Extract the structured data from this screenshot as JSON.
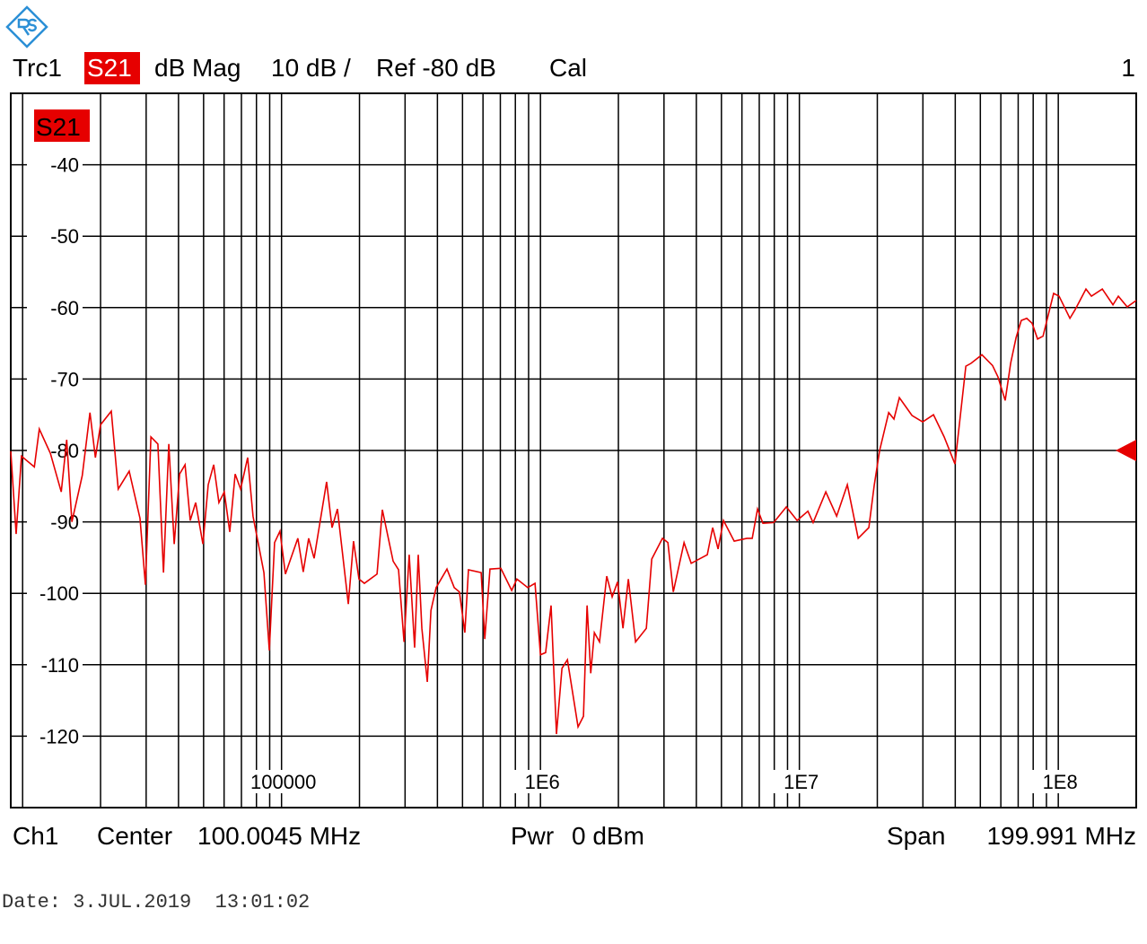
{
  "header": {
    "trace": "Trc1",
    "parameter": "S21",
    "format": "dB Mag",
    "scale": "10 dB /",
    "reference": "Ref -80 dB",
    "calibration": "Cal",
    "window": "1"
  },
  "footer": {
    "channel": "Ch1",
    "center_label": "Center",
    "center": "100.0045 MHz",
    "power_label": "Pwr",
    "power": "0 dBm",
    "span_label": "Span",
    "span": "199.991 MHz",
    "date": "Date: 3.JUL.2019  13:01:02"
  },
  "chart_data": {
    "type": "line",
    "xscale": "log",
    "grid": true,
    "xlim": [
      9000,
      200000000
    ],
    "ylim": [
      -130,
      -30
    ],
    "xticks": [
      {
        "value": 100000,
        "label": "100000"
      },
      {
        "value": 1000000,
        "label": "1E6"
      },
      {
        "value": 10000000,
        "label": "1E7"
      },
      {
        "value": 100000000,
        "label": "1E8"
      }
    ],
    "xgrid": [
      10000,
      20000,
      30000,
      40000,
      50000,
      60000,
      70000,
      80000,
      90000,
      100000,
      200000,
      300000,
      400000,
      500000,
      600000,
      700000,
      800000,
      900000,
      1000000,
      2000000,
      3000000,
      4000000,
      5000000,
      6000000,
      7000000,
      8000000,
      9000000,
      10000000,
      20000000,
      30000000,
      40000000,
      50000000,
      60000000,
      70000000,
      80000000,
      90000000,
      100000000
    ],
    "yticks": [
      -40,
      -50,
      -60,
      -70,
      -80,
      -90,
      -100,
      -110,
      -120
    ],
    "reference_level": -80,
    "x": [
      9000,
      9440,
      9900,
      11100,
      11600,
      12800,
      14100,
      14800,
      15500,
      17000,
      18200,
      19100,
      20000,
      22000,
      23400,
      25800,
      28400,
      29800,
      31300,
      33300,
      35000,
      36700,
      38500,
      40400,
      42400,
      44400,
      46600,
      49700,
      52100,
      54700,
      57300,
      60100,
      63100,
      66200,
      69500,
      74000,
      77600,
      85500,
      89700,
      94000,
      98600,
      103500,
      115600,
      121300,
      127300,
      133600,
      149300,
      156700,
      164400,
      181100,
      189700,
      199100,
      208900,
      233800,
      245100,
      269800,
      283100,
      297200,
      311200,
      326600,
      337300,
      348300,
      365600,
      377600,
      395400,
      435500,
      464500,
      486400,
      510500,
      527200,
      590200,
      609500,
      638300,
      703100,
      774400,
      810900,
      893300,
      952800,
      1000000,
      1047000,
      1099000,
      1153000,
      1211000,
      1271000,
      1397000,
      1466000,
      1514000,
      1564000,
      1615000,
      1691000,
      1803000,
      1892000,
      1986000,
      2083000,
      2185000,
      2330000,
      2564000,
      2691000,
      2960000,
      3106000,
      3259000,
      3586000,
      3821000,
      4409000,
      4626000,
      4853000,
      5092000,
      5602000,
      6267000,
      6576000,
      6892000,
      7230000,
      7954000,
      8906000,
      9800000,
      10790000,
      11300000,
      12650000,
      13930000,
      15320000,
      16070000,
      16870000,
      18550000,
      19470000,
      20420000,
      22130000,
      23190000,
      24330000,
      27230000,
      29940000,
      32960000,
      36240000,
      39900000,
      43950000,
      46030000,
      50700000,
      55720000,
      58480000,
      62370000,
      65460000,
      68710000,
      71950000,
      75510000,
      79250000,
      83180000,
      87300000,
      95940000,
      100700000,
      110900000,
      116100000,
      127900000,
      134300000,
      147900000,
      162600000,
      170600000,
      184600000,
      200000000
    ],
    "series": [
      {
        "name": "S21",
        "color": "#e60000",
        "values": [
          -80.1,
          -91.7,
          -80.8,
          -82.3,
          -77,
          -80.4,
          -85.8,
          -78.5,
          -90,
          -83.5,
          -74.7,
          -81,
          -76.4,
          -74.5,
          -85.4,
          -82.9,
          -89.5,
          -98.8,
          -78.1,
          -79.1,
          -97.1,
          -79.1,
          -93.1,
          -83.3,
          -82,
          -89.8,
          -87.3,
          -93.1,
          -84.8,
          -82,
          -87.3,
          -85.8,
          -91.4,
          -83.3,
          -85.4,
          -81,
          -89.2,
          -97.1,
          -108,
          -92.9,
          -91.3,
          -97.3,
          -92.3,
          -97,
          -92.3,
          -95.1,
          -84.4,
          -90.8,
          -88.2,
          -101.5,
          -92.7,
          -98,
          -98.6,
          -97.3,
          -88.3,
          -95.5,
          -96.7,
          -106.8,
          -94.6,
          -107.6,
          -94.6,
          -104.9,
          -112.4,
          -102.4,
          -99.2,
          -96.6,
          -99.2,
          -99.8,
          -105.5,
          -96.7,
          -97.1,
          -106.4,
          -96.6,
          -96.5,
          -99.6,
          -98,
          -99.2,
          -98.6,
          -108.6,
          -108.3,
          -101.7,
          -119.7,
          -110.5,
          -109.3,
          -118.7,
          -117.2,
          -101.7,
          -111.2,
          -105.5,
          -106.8,
          -97.6,
          -100.5,
          -98.4,
          -104.9,
          -98,
          -106.8,
          -104.9,
          -95.2,
          -92.3,
          -92.9,
          -99.8,
          -92.9,
          -95.8,
          -94.6,
          -90.8,
          -93.8,
          -89.8,
          -92.7,
          -92.3,
          -92.3,
          -88.2,
          -90.2,
          -90.1,
          -87.9,
          -89.8,
          -88.5,
          -90.1,
          -85.8,
          -89.2,
          -84.8,
          -88.5,
          -92.3,
          -90.8,
          -84.8,
          -80,
          -74.7,
          -75.6,
          -72.6,
          -75.1,
          -76,
          -75,
          -78.1,
          -81.9,
          -68.2,
          -67.8,
          -66.6,
          -68.1,
          -69.7,
          -73,
          -67.8,
          -64.2,
          -61.8,
          -61.5,
          -62.2,
          -64.4,
          -64,
          -58,
          -58.4,
          -61.5,
          -60.3,
          -57.4,
          -58.4,
          -57.4,
          -59.6,
          -58.4,
          -59.9,
          -59
        ]
      }
    ]
  }
}
